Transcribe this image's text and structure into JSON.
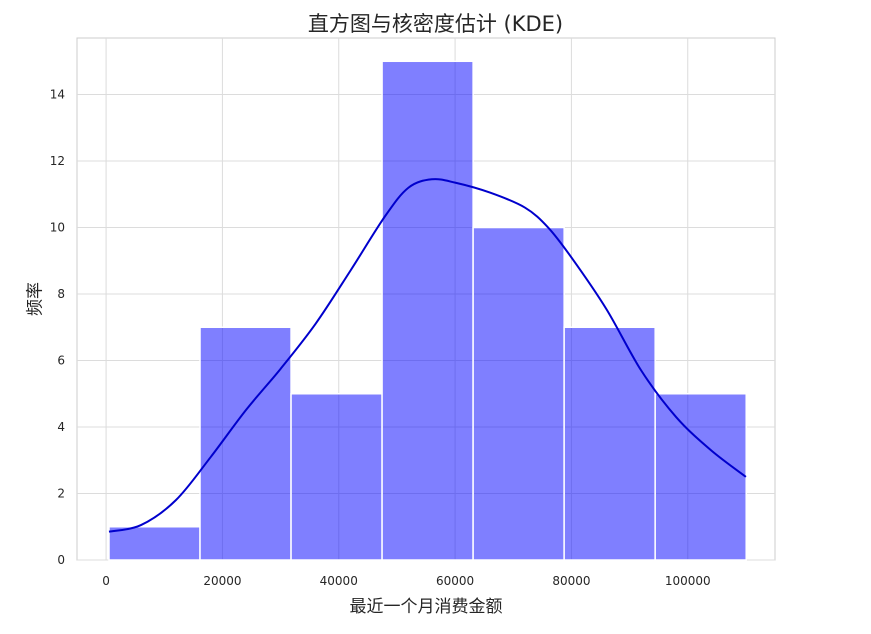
{
  "chart_data": {
    "type": "histogram",
    "title": "直方图与核密度估计 (KDE)",
    "xlabel": "最近一个月消费金额",
    "ylabel": "频率",
    "xlim": [
      -5000,
      115000
    ],
    "ylim": [
      0,
      15.7
    ],
    "xticks": [
      0,
      20000,
      40000,
      60000,
      80000,
      100000
    ],
    "yticks": [
      0,
      2,
      4,
      6,
      8,
      10,
      12,
      14
    ],
    "grid": true,
    "bins": [
      {
        "x0": 500,
        "x1": 16150,
        "count": 1
      },
      {
        "x0": 16150,
        "x1": 31800,
        "count": 7
      },
      {
        "x0": 31800,
        "x1": 47450,
        "count": 5
      },
      {
        "x0": 47450,
        "x1": 63100,
        "count": 15
      },
      {
        "x0": 63100,
        "x1": 78750,
        "count": 10
      },
      {
        "x0": 78750,
        "x1": 94400,
        "count": 7
      },
      {
        "x0": 94400,
        "x1": 110050,
        "count": 5
      }
    ],
    "bar_color": "#0000ff",
    "bar_opacity": 0.5,
    "kde": {
      "color": "#0000cc",
      "x": [
        500,
        6000,
        12000,
        18000,
        24000,
        30000,
        36000,
        42000,
        48000,
        52000,
        56000,
        60000,
        66000,
        72000,
        76000,
        80000,
        86000,
        92000,
        98000,
        104000,
        110000
      ],
      "y": [
        0.85,
        1.05,
        1.8,
        3.1,
        4.5,
        5.75,
        7.1,
        8.7,
        10.35,
        11.2,
        11.45,
        11.35,
        11.05,
        10.6,
        10.0,
        9.1,
        7.55,
        5.7,
        4.3,
        3.3,
        2.5
      ]
    }
  }
}
